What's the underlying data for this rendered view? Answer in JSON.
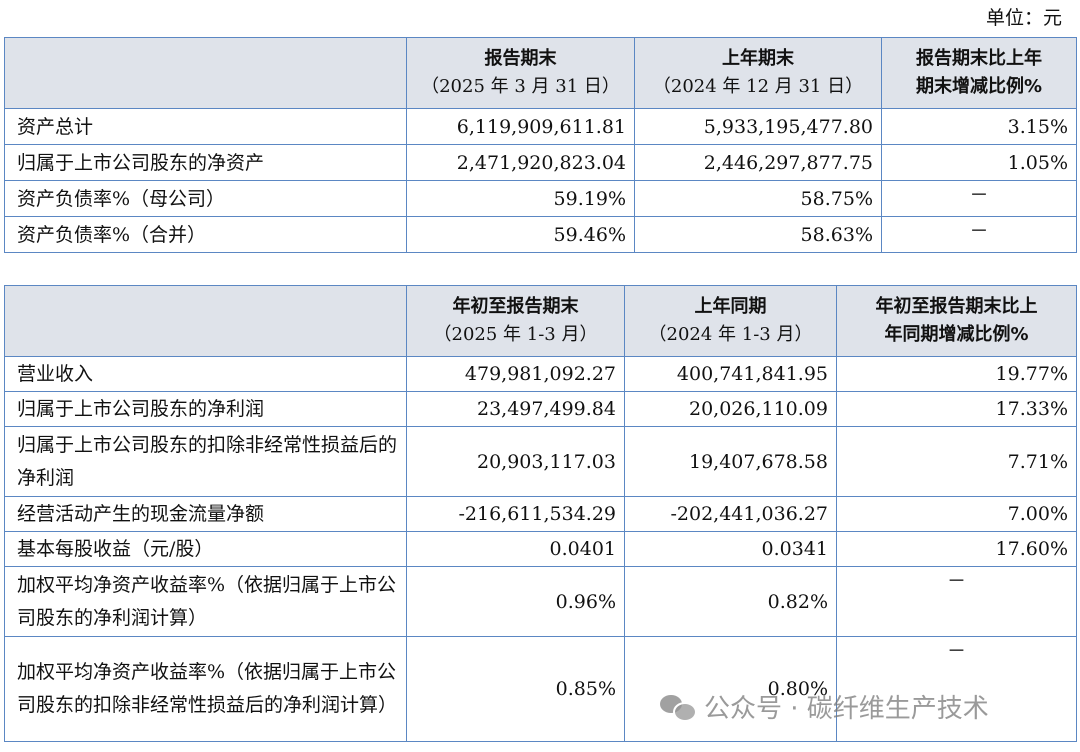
{
  "unit_label": "单位：元",
  "table1": {
    "headers": [
      {
        "line1": "",
        "line2": ""
      },
      {
        "line1": "报告期末",
        "line2": "（2025 年 3 月 31 日）"
      },
      {
        "line1": "上年期末",
        "line2": "（2024 年 12 月 31 日）"
      },
      {
        "line1": "报告期末比上年",
        "line2": "期末增减比例%"
      }
    ],
    "rows": [
      {
        "label": "资产总计",
        "current": "6,119,909,611.81",
        "previous": "5,933,195,477.80",
        "change": "3.15%"
      },
      {
        "label": "归属于上市公司股东的净资产",
        "current": "2,471,920,823.04",
        "previous": "2,446,297,877.75",
        "change": "1.05%"
      },
      {
        "label": "资产负债率%（母公司）",
        "current": "59.19%",
        "previous": "58.75%",
        "change": "－"
      },
      {
        "label": "资产负债率%（合并）",
        "current": "59.46%",
        "previous": "58.63%",
        "change": "－"
      }
    ]
  },
  "table2": {
    "headers": [
      {
        "line1": "",
        "line2": ""
      },
      {
        "line1": "年初至报告期末",
        "line2": "（2025 年 1-3 月）"
      },
      {
        "line1": "上年同期",
        "line2": "（2024 年 1-3 月）"
      },
      {
        "line1": "年初至报告期末比上",
        "line2": "年同期增减比例%"
      }
    ],
    "rows": [
      {
        "label": "营业收入",
        "current": "479,981,092.27",
        "previous": "400,741,841.95",
        "change": "19.77%"
      },
      {
        "label": "归属于上市公司股东的净利润",
        "current": "23,497,499.84",
        "previous": "20,026,110.09",
        "change": "17.33%"
      },
      {
        "label": "归属于上市公司股东的扣除非经常性损益后的净利润",
        "current": "20,903,117.03",
        "previous": "19,407,678.58",
        "change": "7.71%"
      },
      {
        "label": "经营活动产生的现金流量净额",
        "current": "-216,611,534.29",
        "previous": "-202,441,036.27",
        "change": "7.00%"
      },
      {
        "label": "基本每股收益（元/股）",
        "current": "0.0401",
        "previous": "0.0341",
        "change": "17.60%"
      },
      {
        "label": "加权平均净资产收益率%（依据归属于上市公司股东的净利润计算）",
        "current": "0.96%",
        "previous": "0.82%",
        "change": "－"
      },
      {
        "label": "加权平均净资产收益率%（依据归属于上市公司股东的扣除非经常性损益后的净利润计算）",
        "current": "0.85%",
        "previous": "0.80%",
        "change": "－"
      }
    ]
  },
  "watermark": {
    "text": "公众号 · 碳纤维生产技术",
    "icon": "wechat-icon"
  },
  "colors": {
    "border": "#5b87c3",
    "header_bg": "#dfe3ea"
  }
}
